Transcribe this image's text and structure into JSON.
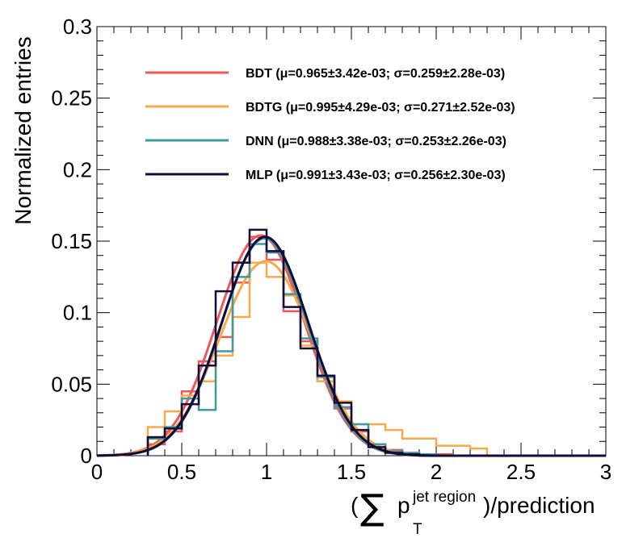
{
  "chart_data": {
    "type": "line",
    "xlabel_parts": {
      "open": "(",
      "sum": "∑",
      "p": "p",
      "superscript": "jet region",
      "subscript": "T",
      "close": ")/prediction"
    },
    "ylabel": "Normalized entries",
    "xlim": [
      0,
      3
    ],
    "ylim": [
      0,
      0.3
    ],
    "x_ticks": [
      "0",
      "0.5",
      "1",
      "1.5",
      "2",
      "2.5",
      "3"
    ],
    "x_tick_values": [
      0,
      0.5,
      1,
      1.5,
      2,
      2.5,
      3
    ],
    "y_ticks": [
      "0",
      "0.05",
      "0.1",
      "0.15",
      "0.2",
      "0.25",
      "0.3"
    ],
    "y_tick_values": [
      0,
      0.05,
      0.1,
      0.15,
      0.2,
      0.25,
      0.3
    ],
    "grid": false,
    "legend_position": "top",
    "bin_edges": [
      0.3,
      0.4,
      0.5,
      0.6,
      0.7,
      0.8,
      0.9,
      1.0,
      1.1,
      1.2,
      1.3,
      1.4,
      1.5,
      1.6,
      1.7,
      1.8,
      1.9,
      2.0,
      2.1,
      2.2,
      2.3
    ],
    "series": [
      {
        "name": "BDT",
        "legend": "BDT (μ=0.965±3.42e-03;  σ=0.259±2.28e-03)",
        "color": "#f0575a",
        "mu": 0.965,
        "sigma": 0.259,
        "peak": 0.154,
        "hist": [
          0.008,
          0.017,
          0.045,
          0.066,
          0.083,
          0.121,
          0.153,
          0.137,
          0.101,
          0.08,
          0.052,
          0.033,
          0.017,
          0.008,
          0.004,
          0.002,
          0.001,
          0.001,
          0.0,
          0.0
        ]
      },
      {
        "name": "BDTG",
        "legend": "BDTG (μ=0.995±4.29e-03;  σ=0.271±2.52e-03)",
        "color": "#f9a94a",
        "mu": 0.995,
        "sigma": 0.271,
        "peak": 0.136,
        "hist": [
          0.02,
          0.031,
          0.042,
          0.052,
          0.07,
          0.097,
          0.135,
          0.125,
          0.112,
          0.077,
          0.052,
          0.038,
          0.022,
          0.022,
          0.018,
          0.012,
          0.012,
          0.007,
          0.007,
          0.005
        ]
      },
      {
        "name": "DNN",
        "legend": "DNN (μ=0.988±3.38e-03;  σ=0.253±2.26e-03)",
        "color": "#3d9b9b",
        "mu": 0.988,
        "sigma": 0.253,
        "peak": 0.152,
        "hist": [
          0.012,
          0.02,
          0.04,
          0.032,
          0.073,
          0.125,
          0.148,
          0.142,
          0.113,
          0.082,
          0.055,
          0.034,
          0.022,
          0.008,
          0.003,
          0.002,
          0.001,
          0.0,
          0.0,
          0.0
        ]
      },
      {
        "name": "MLP",
        "legend": "MLP (μ=0.991±3.43e-03;  σ=0.256±2.30e-03)",
        "color": "#150b38",
        "mu": 0.991,
        "sigma": 0.256,
        "peak": 0.153,
        "hist": [
          0.013,
          0.019,
          0.036,
          0.063,
          0.115,
          0.135,
          0.158,
          0.143,
          0.104,
          0.075,
          0.056,
          0.037,
          0.018,
          0.006,
          0.002,
          0.001,
          0.0,
          0.0,
          0.0,
          0.0
        ]
      }
    ]
  }
}
